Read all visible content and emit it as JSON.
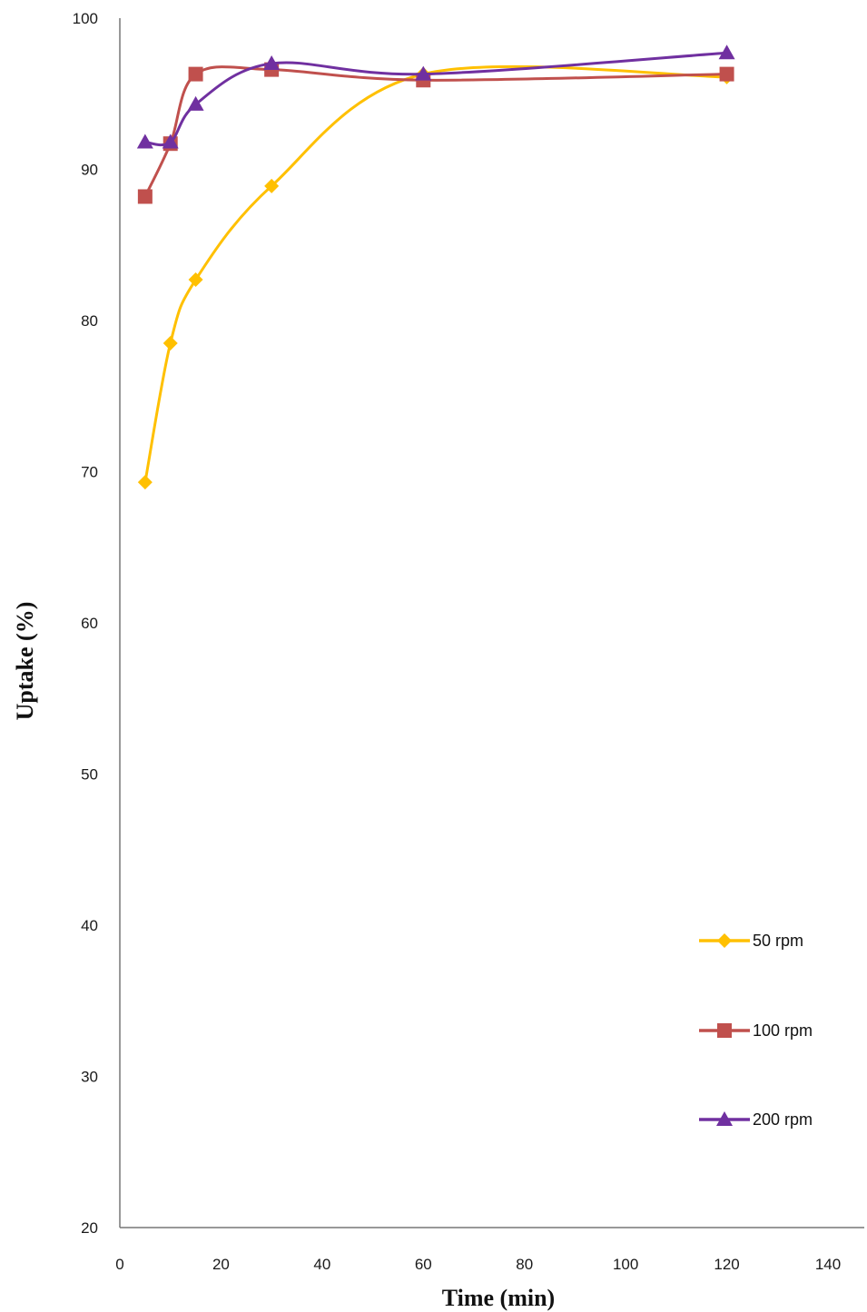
{
  "chart_data": {
    "type": "line",
    "title": "",
    "xlabel": "Time (min)",
    "ylabel": "Uptake (%)",
    "xlim": [
      0,
      140
    ],
    "ylim": [
      20,
      100
    ],
    "xticks": [
      0,
      20,
      40,
      60,
      80,
      100,
      120,
      140
    ],
    "yticks": [
      20,
      30,
      40,
      50,
      60,
      70,
      80,
      90,
      100
    ],
    "x": [
      5,
      10,
      15,
      30,
      60,
      120
    ],
    "grid": false,
    "smooth": true,
    "legend_position": "bottom-right",
    "series": [
      {
        "name": "50 rpm",
        "color": "#FFC000",
        "marker": "diamond",
        "values": [
          69.3,
          78.5,
          82.7,
          88.9,
          96.3,
          96.1
        ]
      },
      {
        "name": "100 rpm",
        "color": "#C0504D",
        "marker": "square",
        "values": [
          88.2,
          91.7,
          96.3,
          96.6,
          95.9,
          96.3
        ]
      },
      {
        "name": "200 rpm",
        "color": "#7030A0",
        "marker": "triangle",
        "values": [
          91.8,
          91.8,
          94.3,
          97.0,
          96.3,
          97.7
        ]
      }
    ]
  }
}
